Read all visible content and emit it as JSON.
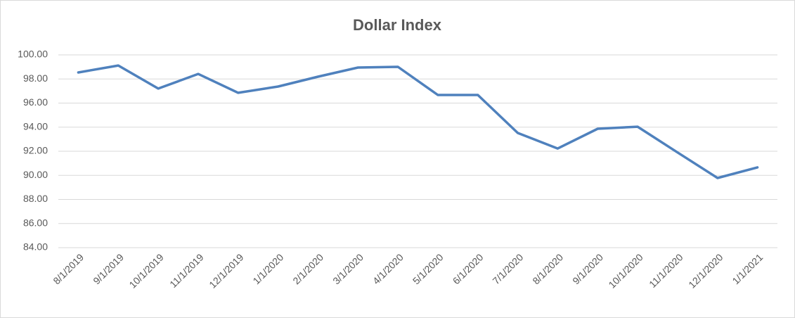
{
  "chart_data": {
    "type": "line",
    "title": "Dollar Index",
    "categories": [
      "8/1/2019",
      "9/1/2019",
      "10/1/2019",
      "11/1/2019",
      "12/1/2019",
      "1/1/2020",
      "2/1/2020",
      "3/1/2020",
      "4/1/2020",
      "5/1/2020",
      "6/1/2020",
      "7/1/2020",
      "8/1/2020",
      "9/1/2020",
      "10/1/2020",
      "11/1/2020",
      "12/1/2020",
      "1/1/2021"
    ],
    "values": [
      98.54,
      99.12,
      97.2,
      98.42,
      96.85,
      97.37,
      98.19,
      98.95,
      99.01,
      96.67,
      96.67,
      93.52,
      92.23,
      93.87,
      94.04,
      91.9,
      89.78,
      90.66
    ],
    "color": "#4f81bd",
    "ylim": [
      84,
      100
    ],
    "yticks": [
      {
        "value": 84,
        "label": "84.00"
      },
      {
        "value": 86,
        "label": "86.00"
      },
      {
        "value": 88,
        "label": "88.00"
      },
      {
        "value": 90,
        "label": "90.00"
      },
      {
        "value": 92,
        "label": "92.00"
      },
      {
        "value": 94,
        "label": "94.00"
      },
      {
        "value": 96,
        "label": "96.00"
      },
      {
        "value": 98,
        "label": "98.00"
      },
      {
        "value": 100,
        "label": "100.00"
      }
    ],
    "grid": true
  }
}
